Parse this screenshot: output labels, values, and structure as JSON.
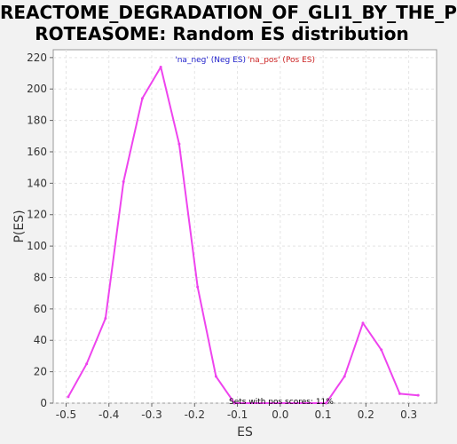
{
  "chart_data": {
    "type": "line",
    "title_lines": [
      "REACTOME_DEGRADATION_OF_GLI1_BY_THE_P",
      "ROTEASOME: Random ES distribution"
    ],
    "xlabel": "ES",
    "ylabel": "P(ES)",
    "xlim": [
      -0.53,
      0.365
    ],
    "ylim": [
      0,
      225
    ],
    "x_ticks": [
      -0.5,
      -0.4,
      -0.3,
      -0.2,
      -0.1,
      0.0,
      0.1,
      0.2,
      0.3
    ],
    "x_tick_labels": [
      "-0.5",
      "-0.4",
      "-0.3",
      "-0.2",
      "-0.1",
      "0.0",
      "0.1",
      "0.2",
      "0.3"
    ],
    "y_ticks": [
      0,
      20,
      40,
      60,
      80,
      100,
      120,
      140,
      160,
      180,
      200,
      220
    ],
    "y_tick_labels": [
      "0",
      "20",
      "40",
      "60",
      "80",
      "100",
      "120",
      "140",
      "160",
      "180",
      "200",
      "220"
    ],
    "grid": true,
    "line_color": "#ee44ee",
    "series": [
      {
        "x": [
          -0.495,
          -0.452,
          -0.408,
          -0.366,
          -0.322,
          -0.279,
          -0.236,
          -0.193,
          -0.15,
          -0.107,
          0.107,
          0.15,
          0.193,
          0.236,
          0.279,
          0.322
        ],
        "y": [
          4,
          25,
          54,
          141,
          194,
          214,
          165,
          74,
          17,
          0,
          0,
          17,
          51,
          34,
          6,
          5
        ]
      }
    ],
    "legend": {
      "neg_label": "'na_neg' (Neg ES)",
      "neg_color": "#2222cc",
      "pos_label": "'na_pos' (Pos ES)",
      "pos_color": "#cc2222",
      "placement": "top-center"
    },
    "annotation": "Sets with pos scores: 11%"
  }
}
